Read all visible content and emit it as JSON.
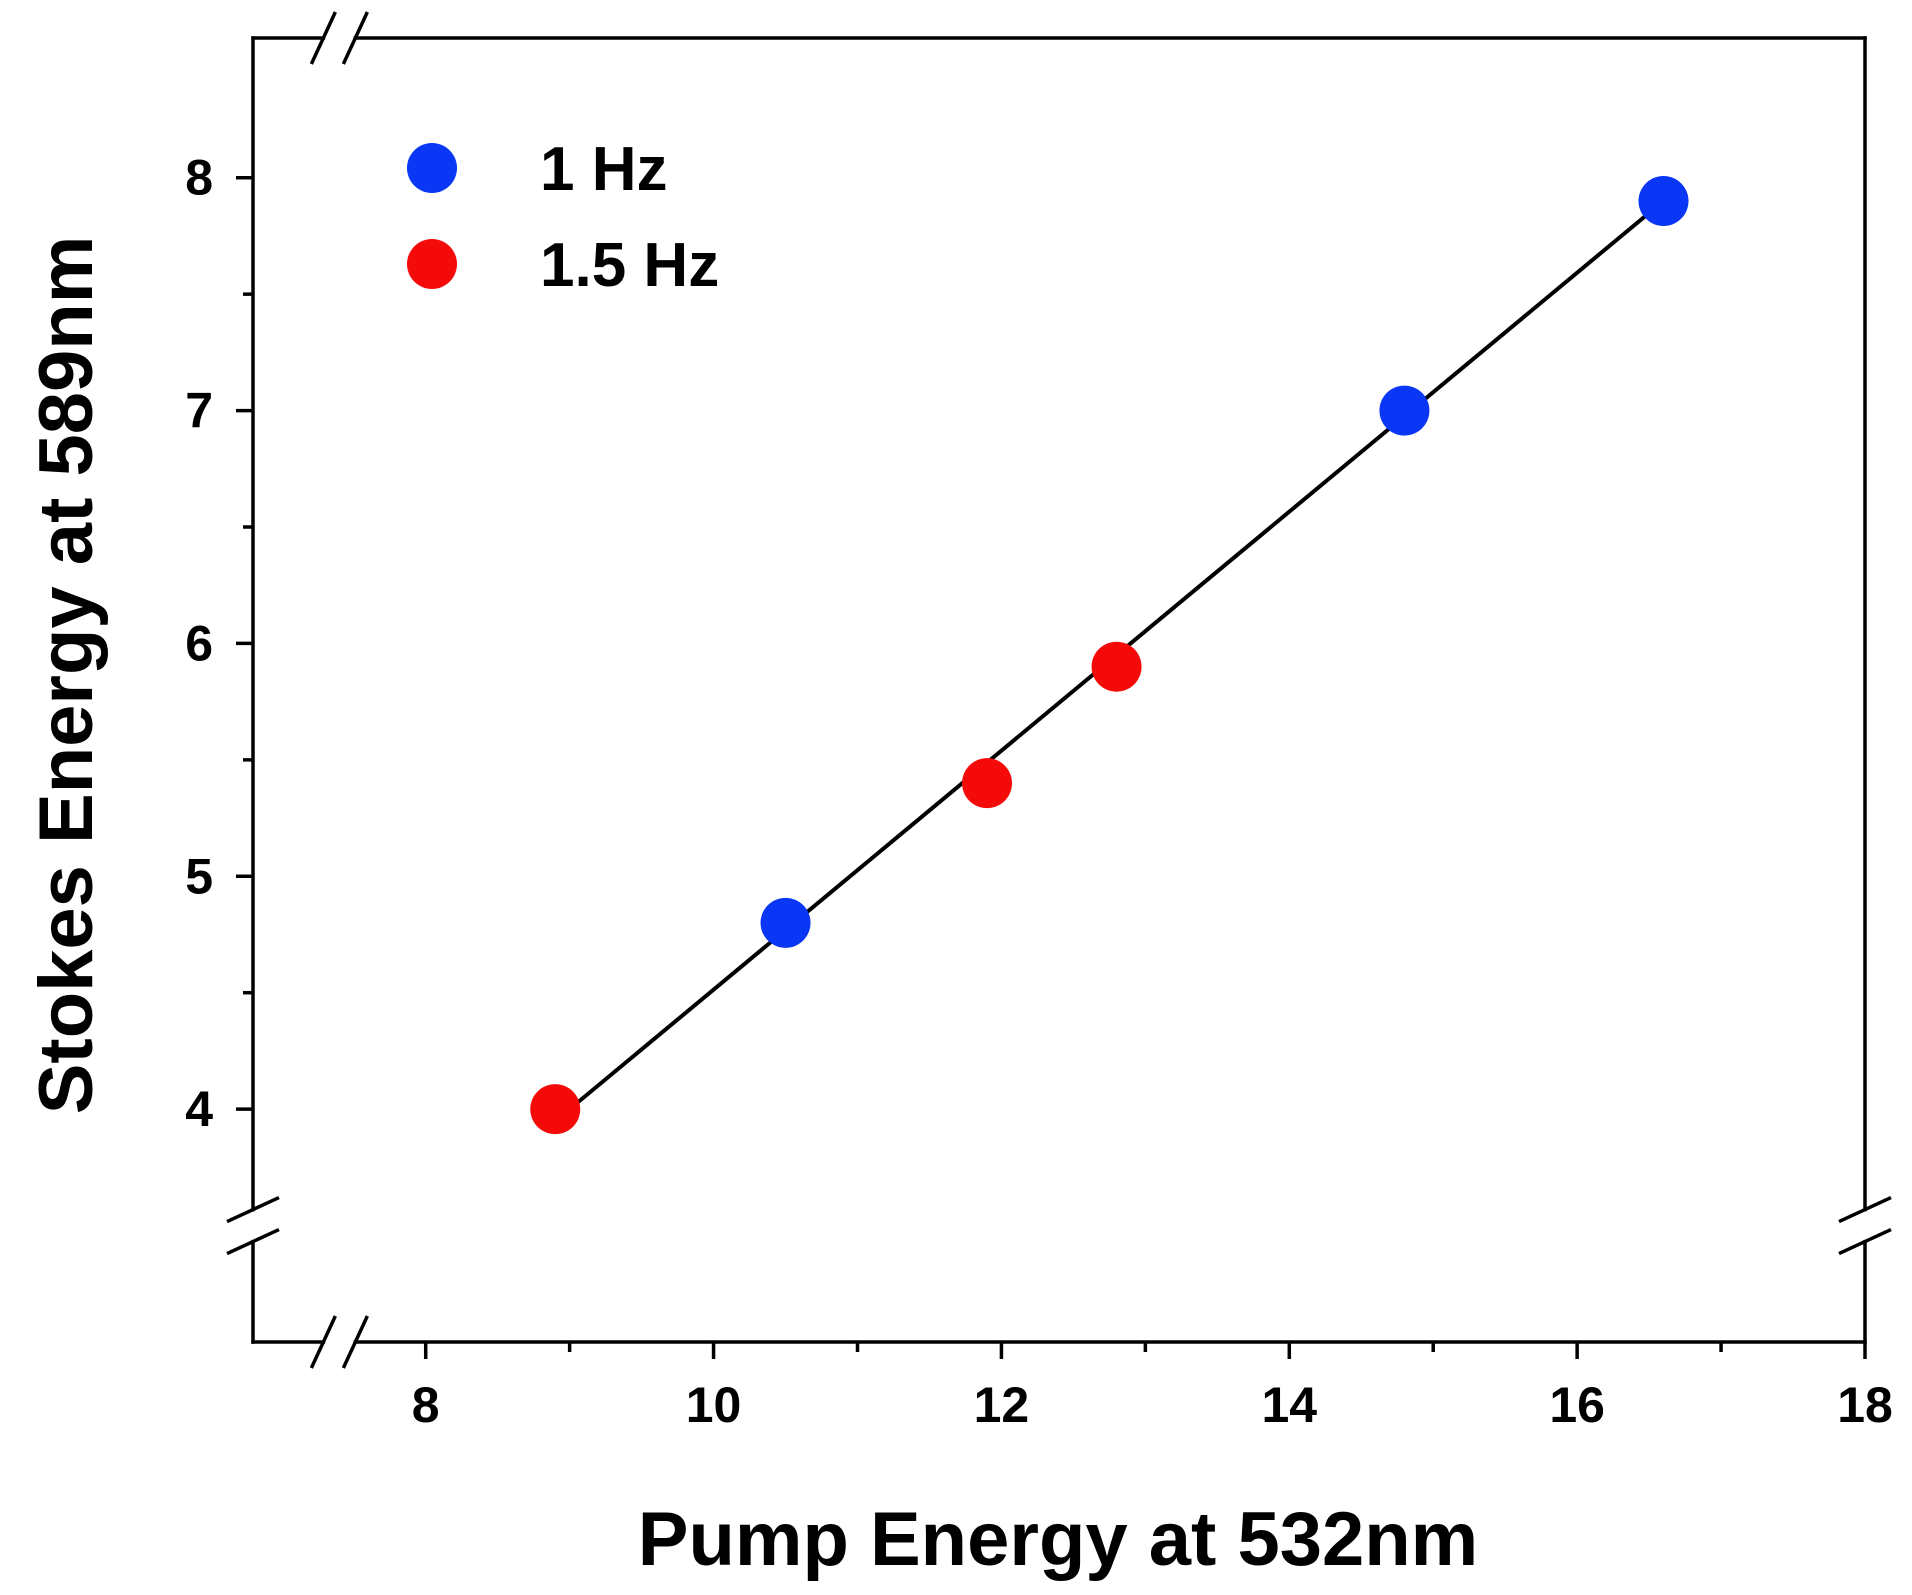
{
  "chart_data": {
    "type": "scatter",
    "xlabel": "Pump Energy at 532nm",
    "ylabel": "Stokes Energy at 589nm",
    "xlim": [
      6.8,
      18
    ],
    "ylim": [
      3.0,
      8.6
    ],
    "x_ticks": [
      8,
      10,
      12,
      14,
      16,
      18
    ],
    "x_tick_labels": [
      "8",
      "10",
      "12",
      "14",
      "16",
      "18"
    ],
    "x_minor_ticks": [
      9,
      11,
      13,
      15,
      17
    ],
    "y_ticks": [
      4,
      5,
      6,
      7,
      8
    ],
    "y_tick_labels": [
      "4",
      "5",
      "6",
      "7",
      "8"
    ],
    "y_minor_ticks": [
      4.5,
      5.5,
      6.5,
      7.5
    ],
    "axis_breaks": {
      "x_at": 7.4,
      "y_at": 3.5
    },
    "grid": false,
    "legend_position": "top-left",
    "series": [
      {
        "name": "1 Hz",
        "color": "#0a36f5",
        "x": [
          10.5,
          14.8,
          16.6
        ],
        "y": [
          4.8,
          7.0,
          7.9
        ]
      },
      {
        "name": "1.5 Hz",
        "color": "#f50a0a",
        "x": [
          8.9,
          11.9,
          12.8
        ],
        "y": [
          4.0,
          5.4,
          5.9
        ]
      }
    ],
    "fit_line": {
      "color": "#000000",
      "x": [
        9.0,
        16.6
      ],
      "y": [
        4.0,
        7.9
      ]
    }
  }
}
